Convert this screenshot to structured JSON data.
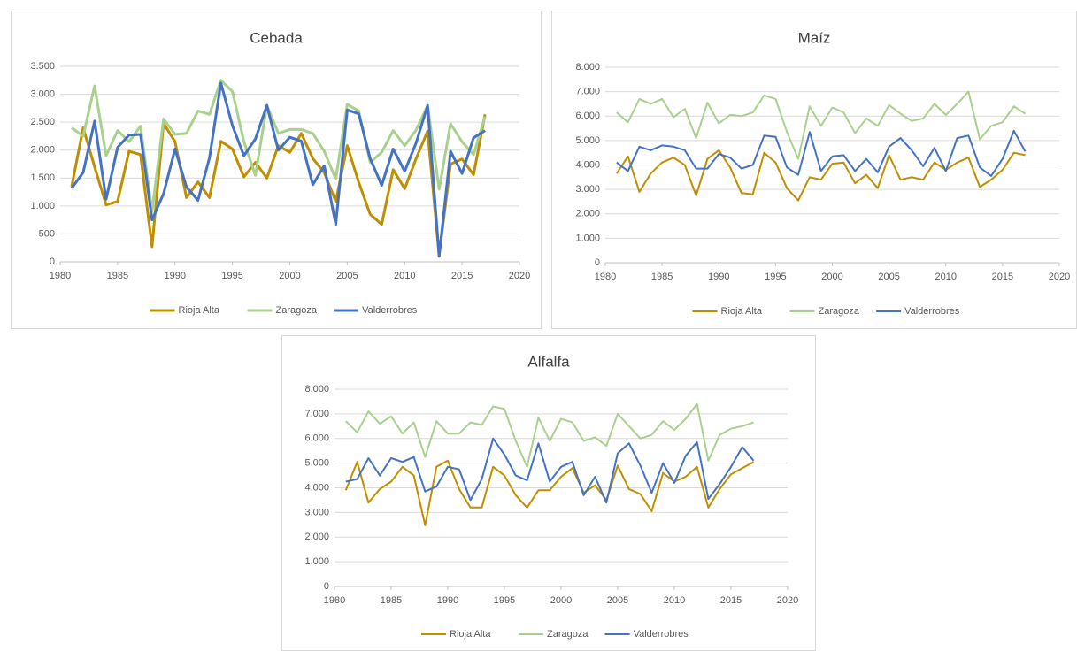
{
  "chart_data": [
    {
      "type": "line",
      "title": "Cebada",
      "x": [
        1981,
        1982,
        1983,
        1984,
        1985,
        1986,
        1987,
        1988,
        1989,
        1990,
        1991,
        1992,
        1993,
        1994,
        1995,
        1996,
        1997,
        1998,
        1999,
        2000,
        2001,
        2002,
        2003,
        2004,
        2005,
        2006,
        2007,
        2008,
        2009,
        2010,
        2011,
        2012,
        2013,
        2014,
        2015,
        2016,
        2017
      ],
      "xlim": [
        1980,
        2020
      ],
      "xticks": [
        1980,
        1985,
        1990,
        1995,
        2000,
        2005,
        2010,
        2015,
        2020
      ],
      "ylim": [
        0,
        3500
      ],
      "yticks": [
        0,
        {
          "value": 500,
          "label": "500"
        },
        {
          "value": 1000,
          "label": "1.000"
        },
        {
          "value": 1500,
          "label": "1.500"
        },
        {
          "value": 2000,
          "label": "2.000"
        },
        {
          "value": 2500,
          "label": "2.500"
        },
        {
          "value": 3000,
          "label": "3.000"
        },
        {
          "value": 3500,
          "label": "3.500"
        }
      ],
      "grid": true,
      "legend": "bottom",
      "line_width": 3,
      "series": [
        {
          "name": "Rioja Alta",
          "color": "#BF8F00",
          "values": [
            1350,
            2400,
            1700,
            1020,
            1080,
            1980,
            1920,
            270,
            2480,
            2150,
            1150,
            1430,
            1150,
            2160,
            2020,
            1520,
            1780,
            1500,
            2080,
            1960,
            2300,
            1850,
            1600,
            1080,
            2080,
            1420,
            850,
            670,
            1650,
            1310,
            1850,
            2340,
            110,
            1750,
            1840,
            1560,
            2640
          ]
        },
        {
          "name": "Zaragoza",
          "color": "#A9D18E",
          "values": [
            2400,
            2250,
            3150,
            1900,
            2350,
            2150,
            2430,
            900,
            2560,
            2280,
            2300,
            2700,
            2640,
            3250,
            3050,
            2150,
            1550,
            2800,
            2300,
            2370,
            2370,
            2300,
            1980,
            1480,
            2820,
            2700,
            1780,
            1960,
            2350,
            2080,
            2360,
            2800,
            1300,
            2470,
            2150,
            1920,
            2600
          ]
        },
        {
          "name": "Valderrobres",
          "color": "#4472C4",
          "values": [
            1320,
            1600,
            2520,
            1120,
            2050,
            2270,
            2280,
            750,
            1220,
            2020,
            1340,
            1100,
            1860,
            3200,
            2440,
            1900,
            2200,
            2800,
            2000,
            2230,
            2160,
            1380,
            1720,
            670,
            2720,
            2650,
            1850,
            1370,
            2020,
            1620,
            2130,
            2800,
            100,
            1980,
            1580,
            2220,
            2350
          ]
        }
      ]
    },
    {
      "type": "line",
      "title": "Maíz",
      "x": [
        1981,
        1982,
        1983,
        1984,
        1985,
        1986,
        1987,
        1988,
        1989,
        1990,
        1991,
        1992,
        1993,
        1994,
        1995,
        1996,
        1997,
        1998,
        1999,
        2000,
        2001,
        2002,
        2003,
        2004,
        2005,
        2006,
        2007,
        2008,
        2009,
        2010,
        2011,
        2012,
        2013,
        2014,
        2015,
        2016,
        2017
      ],
      "xlim": [
        1980,
        2020
      ],
      "xticks": [
        1980,
        1985,
        1990,
        1995,
        2000,
        2005,
        2010,
        2015,
        2020
      ],
      "ylim": [
        0,
        8000
      ],
      "yticks": [
        0,
        {
          "value": 1000,
          "label": "1.000"
        },
        {
          "value": 2000,
          "label": "2.000"
        },
        {
          "value": 3000,
          "label": "3.000"
        },
        {
          "value": 4000,
          "label": "4.000"
        },
        {
          "value": 5000,
          "label": "5.000"
        },
        {
          "value": 6000,
          "label": "6.000"
        },
        {
          "value": 7000,
          "label": "7.000"
        },
        {
          "value": 8000,
          "label": "8.000"
        }
      ],
      "grid": true,
      "legend": "bottom",
      "line_width": 2,
      "series": [
        {
          "name": "Rioja Alta",
          "color": "#BF8F00",
          "values": [
            3650,
            4350,
            2900,
            3650,
            4100,
            4300,
            4000,
            2750,
            4250,
            4600,
            3900,
            2850,
            2800,
            4500,
            4100,
            3050,
            2550,
            3500,
            3400,
            4050,
            4100,
            3250,
            3600,
            3050,
            4400,
            3400,
            3500,
            3400,
            4100,
            3800,
            4100,
            4300,
            3100,
            3400,
            3800,
            4500,
            4400
          ]
        },
        {
          "name": "Zaragoza",
          "color": "#A9D18E",
          "values": [
            6150,
            5750,
            6700,
            6500,
            6700,
            5950,
            6300,
            5100,
            6550,
            5700,
            6050,
            6000,
            6150,
            6850,
            6700,
            5350,
            4250,
            6400,
            5600,
            6350,
            6150,
            5300,
            5900,
            5600,
            6450,
            6100,
            5800,
            5900,
            6500,
            6050,
            6500,
            7000,
            5050,
            5600,
            5750,
            6400,
            6100
          ]
        },
        {
          "name": "Valderrobres",
          "color": "#4472C4",
          "values": [
            4100,
            3750,
            4750,
            4600,
            4800,
            4750,
            4600,
            3850,
            3850,
            4450,
            4300,
            3850,
            4000,
            5200,
            5150,
            3900,
            3600,
            5350,
            3750,
            4350,
            4400,
            3750,
            4250,
            3700,
            4750,
            5100,
            4600,
            3950,
            4700,
            3750,
            5100,
            5200,
            3900,
            3550,
            4250,
            5400,
            4550
          ]
        }
      ]
    },
    {
      "type": "line",
      "title": "Alfalfa",
      "x": [
        1981,
        1982,
        1983,
        1984,
        1985,
        1986,
        1987,
        1988,
        1989,
        1990,
        1991,
        1992,
        1993,
        1994,
        1995,
        1996,
        1997,
        1998,
        1999,
        2000,
        2001,
        2002,
        2003,
        2004,
        2005,
        2006,
        2007,
        2008,
        2009,
        2010,
        2011,
        2012,
        2013,
        2014,
        2015,
        2016,
        2017
      ],
      "xlim": [
        1980,
        2020
      ],
      "xticks": [
        1980,
        1985,
        1990,
        1995,
        2000,
        2005,
        2010,
        2015,
        2020
      ],
      "ylim": [
        0,
        8000
      ],
      "yticks": [
        0,
        {
          "value": 1000,
          "label": "1.000"
        },
        {
          "value": 2000,
          "label": "2.000"
        },
        {
          "value": 3000,
          "label": "3.000"
        },
        {
          "value": 4000,
          "label": "4.000"
        },
        {
          "value": 5000,
          "label": "5.000"
        },
        {
          "value": 6000,
          "label": "6.000"
        },
        {
          "value": 7000,
          "label": "7.000"
        },
        {
          "value": 8000,
          "label": "8.000"
        }
      ],
      "grid": true,
      "legend": "bottom",
      "line_width": 2,
      "series": [
        {
          "name": "Rioja Alta",
          "color": "#BF8F00",
          "values": [
            3900,
            5050,
            3400,
            3950,
            4250,
            4850,
            4500,
            2480,
            4850,
            5100,
            3950,
            3200,
            3200,
            4850,
            4500,
            3700,
            3200,
            3900,
            3900,
            4450,
            4800,
            3800,
            4100,
            3500,
            4900,
            3950,
            3750,
            3050,
            4600,
            4250,
            4450,
            4850,
            3200,
            3950,
            4550,
            4800,
            5050
          ]
        },
        {
          "name": "Zaragoza",
          "color": "#A9D18E",
          "values": [
            6700,
            6250,
            7100,
            6600,
            6900,
            6200,
            6650,
            5250,
            6700,
            6200,
            6200,
            6650,
            6550,
            7300,
            7200,
            5900,
            4850,
            6850,
            5900,
            6800,
            6650,
            5900,
            6050,
            5700,
            7000,
            6500,
            6000,
            6150,
            6700,
            6350,
            6800,
            7400,
            5100,
            6150,
            6400,
            6500,
            6650
          ]
        },
        {
          "name": "Valderrobres",
          "color": "#4472C4",
          "values": [
            4250,
            4350,
            5200,
            4500,
            5200,
            5050,
            5250,
            3850,
            4050,
            4850,
            4750,
            3500,
            4350,
            6000,
            5350,
            4500,
            4300,
            5800,
            4250,
            4850,
            5050,
            3700,
            4450,
            3400,
            5400,
            5800,
            4900,
            3800,
            5000,
            4200,
            5300,
            5850,
            3550,
            4150,
            4850,
            5650,
            5100
          ]
        }
      ]
    }
  ]
}
